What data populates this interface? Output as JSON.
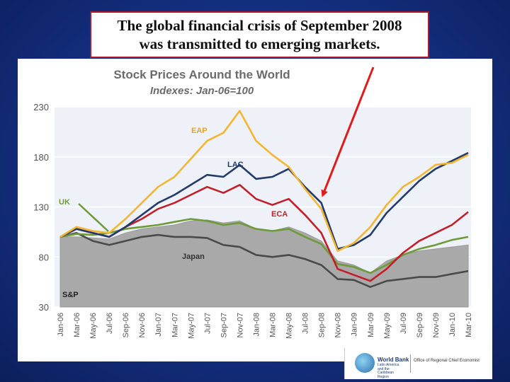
{
  "callout": {
    "line1": "The global financial crisis of September 2008",
    "line2": "was transmitted to emerging markets."
  },
  "chart_data": {
    "type": "line",
    "title": "Stock Prices Around the World",
    "subtitle": "Indexes: Jan-06=100",
    "xlabel": "",
    "ylabel": "",
    "ylim": [
      30,
      230
    ],
    "yticks": [
      30,
      80,
      130,
      180,
      230
    ],
    "x": [
      "Jan-06",
      "Mar-06",
      "May-06",
      "Jul-06",
      "Sep-06",
      "Nov-06",
      "Jan-07",
      "Mar-07",
      "May-07",
      "Jul-07",
      "Sep-07",
      "Nov-07",
      "Jan-08",
      "Mar-08",
      "May-08",
      "Jul-08",
      "Sep-08",
      "Nov-08",
      "Jan-09",
      "Mar-09",
      "May-09",
      "Jul-09",
      "Sep-09",
      "Nov-09",
      "Jan-10",
      "Mar-10"
    ],
    "grid": "horizontal",
    "series": [
      {
        "name": "S&P",
        "type": "area",
        "color": "#a9a9a9",
        "values": [
          100,
          100,
          99,
          98,
          104,
          108,
          110,
          112,
          116,
          117,
          114,
          116,
          108,
          106,
          110,
          104,
          96,
          76,
          72,
          64,
          76,
          82,
          86,
          88,
          90,
          92
        ]
      },
      {
        "name": "Japan",
        "color": "#4a4a4a",
        "values": [
          100,
          104,
          96,
          92,
          96,
          100,
          102,
          100,
          100,
          99,
          92,
          90,
          82,
          80,
          82,
          78,
          72,
          58,
          57,
          50,
          56,
          58,
          60,
          60,
          63,
          66
        ]
      },
      {
        "name": "UK",
        "color": "#6e9a3a",
        "values": [
          100,
          103,
          102,
          104,
          108,
          110,
          112,
          115,
          118,
          116,
          112,
          114,
          108,
          106,
          108,
          100,
          93,
          73,
          70,
          64,
          72,
          82,
          88,
          92,
          97,
          100
        ]
      },
      {
        "name": "ECA",
        "color": "#c21f2a",
        "values": [
          100,
          108,
          104,
          100,
          110,
          118,
          128,
          134,
          142,
          150,
          144,
          152,
          138,
          132,
          138,
          122,
          104,
          68,
          62,
          56,
          68,
          84,
          96,
          104,
          112,
          125
        ]
      },
      {
        "name": "LAC",
        "color": "#243a6b",
        "values": [
          100,
          108,
          104,
          100,
          110,
          122,
          134,
          142,
          152,
          162,
          160,
          172,
          158,
          160,
          168,
          150,
          134,
          88,
          92,
          102,
          124,
          140,
          156,
          168,
          176,
          184
        ]
      },
      {
        "name": "EAP",
        "color": "#f2b632",
        "values": [
          100,
          110,
          106,
          104,
          118,
          134,
          150,
          160,
          178,
          196,
          204,
          226,
          196,
          182,
          170,
          148,
          128,
          86,
          94,
          110,
          132,
          150,
          160,
          172,
          174,
          182
        ]
      }
    ],
    "annotations": [
      {
        "text": "EAP",
        "color": "#e6a52a"
      },
      {
        "text": "LAC",
        "color": "#243a6b"
      },
      {
        "text": "UK",
        "color": "#6e9a3a"
      },
      {
        "text": "ECA",
        "color": "#c21f2a"
      },
      {
        "text": "Japan",
        "color": "#333333"
      },
      {
        "text": "S&P",
        "color": "#222222"
      }
    ]
  },
  "logo": {
    "name": "World Bank",
    "sub": "Latin America and the Caribbean Region",
    "office": "Office of Regional Chief Economist"
  }
}
